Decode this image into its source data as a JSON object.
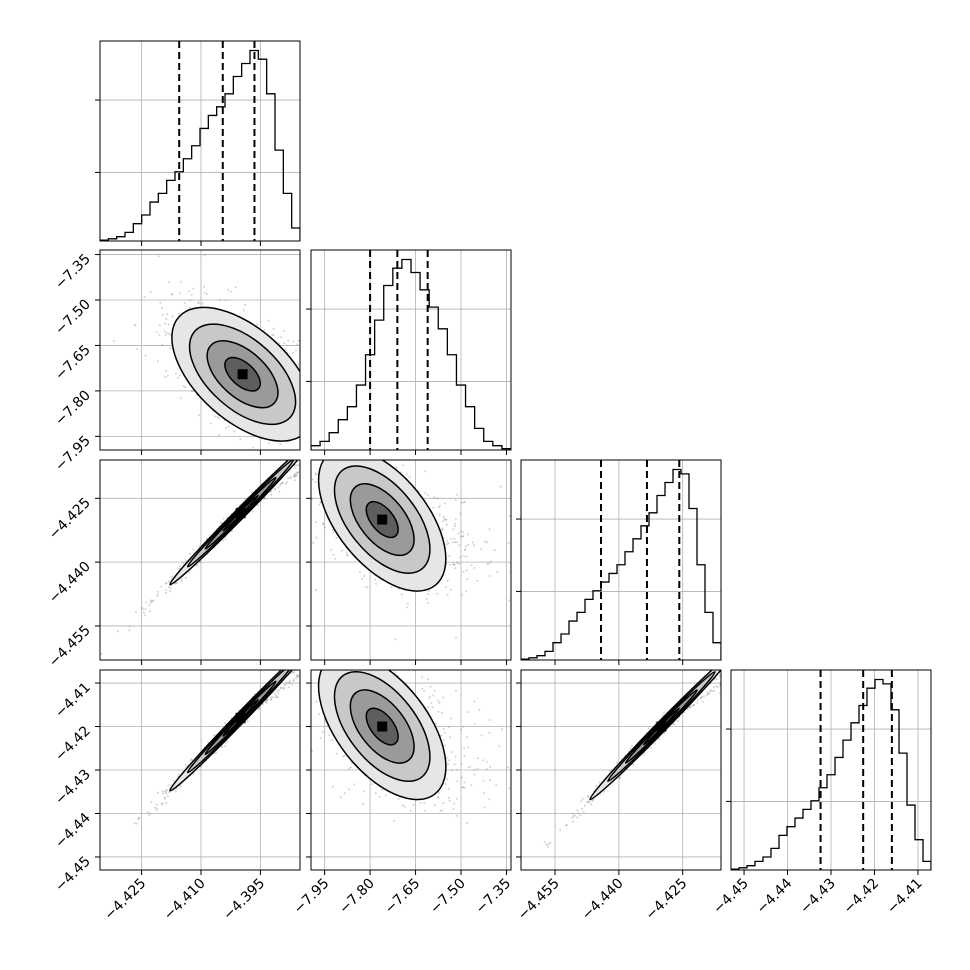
{
  "chart_data": {
    "type": "corner",
    "title": "",
    "dimensions": [
      {
        "index": 0,
        "range": [
          -4.4355,
          -4.385
        ],
        "ticks": [
          -4.425,
          -4.41,
          -4.395
        ],
        "tick_labels": [
          "−4.425",
          "−4.410",
          "−4.395"
        ],
        "quantiles": [
          -4.4155,
          -4.4045,
          -4.3965
        ],
        "hist_max": 44
      },
      {
        "index": 1,
        "range": [
          -7.995,
          -7.335
        ],
        "ticks": [
          -7.95,
          -7.8,
          -7.65,
          -7.5,
          -7.35
        ],
        "tick_labels": [
          "−7.95",
          "−7.80",
          "−7.65",
          "−7.50",
          "−7.35"
        ],
        "quantiles": [
          -7.8,
          -7.71,
          -7.61
        ],
        "hist_max": 44
      },
      {
        "index": 2,
        "range": [
          -4.463,
          -4.416
        ],
        "ticks": [
          -4.455,
          -4.44,
          -4.425
        ],
        "tick_labels": [
          "−4.455",
          "−4.440",
          "−4.425"
        ],
        "quantiles": [
          -4.4442,
          -4.4334,
          -4.4258
        ],
        "hist_max": 44
      },
      {
        "index": 3,
        "range": [
          -4.453,
          -4.407
        ],
        "ticks": [
          -4.45,
          -4.44,
          -4.43,
          -4.42,
          -4.41
        ],
        "tick_labels": [
          "−4.45",
          "−4.44",
          "−4.43",
          "−4.42",
          "−4.41"
        ],
        "quantiles": [
          -4.4324,
          -4.4226,
          -4.416
        ],
        "hist_max": 44
      }
    ],
    "histograms": [
      [
        0.2,
        0.5,
        1,
        2,
        4,
        6,
        9,
        11,
        14,
        16,
        19,
        22,
        26,
        29,
        31,
        34,
        38,
        41,
        44,
        42,
        34,
        21,
        11,
        3
      ],
      [
        1,
        2,
        4,
        7,
        10,
        15,
        22,
        30,
        38,
        42,
        44,
        41,
        37,
        33,
        28,
        22,
        15,
        10,
        5,
        2,
        1,
        0.3
      ],
      [
        0.2,
        0.5,
        1,
        2,
        4,
        6,
        9,
        11,
        14,
        16,
        18,
        20,
        22,
        25,
        28,
        31,
        34,
        38,
        41,
        44,
        43,
        35,
        22,
        11,
        4
      ],
      [
        0.2,
        0.5,
        1,
        2,
        3,
        5,
        8,
        10,
        12,
        14,
        16,
        19,
        22,
        26,
        30,
        34,
        38,
        42,
        44,
        43,
        37,
        27,
        15,
        7,
        2
      ]
    ],
    "pairs": [
      {
        "row": 1,
        "col": 0,
        "mean": [
          -4.3995,
          -7.745
        ],
        "sd": [
          0.0085,
          0.105
        ],
        "rho": -0.55
      },
      {
        "row": 2,
        "col": 0,
        "mean": [
          -4.4,
          -4.4285
        ],
        "sd": [
          0.0085,
          0.008
        ],
        "rho": 0.995
      },
      {
        "row": 2,
        "col": 1,
        "mean": [
          -7.76,
          -4.43
        ],
        "sd": [
          0.1,
          0.008
        ],
        "rho": -0.55
      },
      {
        "row": 3,
        "col": 0,
        "mean": [
          -4.4,
          -4.418
        ],
        "sd": [
          0.0085,
          0.008
        ],
        "rho": 0.995
      },
      {
        "row": 3,
        "col": 1,
        "mean": [
          -7.76,
          -4.42
        ],
        "sd": [
          0.1,
          0.008
        ],
        "rho": -0.55
      },
      {
        "row": 3,
        "col": 2,
        "mean": [
          -4.43,
          -4.42
        ],
        "sd": [
          0.008,
          0.008
        ],
        "rho": 0.995
      }
    ],
    "contour_levels_sigma": [
      0.5,
      1.0,
      1.5,
      2.0
    ],
    "grid": true,
    "colors": {
      "line": "#000000",
      "grid": "#b0b0b0",
      "points": "#7f7f7f",
      "density_dark": "#000000"
    }
  }
}
